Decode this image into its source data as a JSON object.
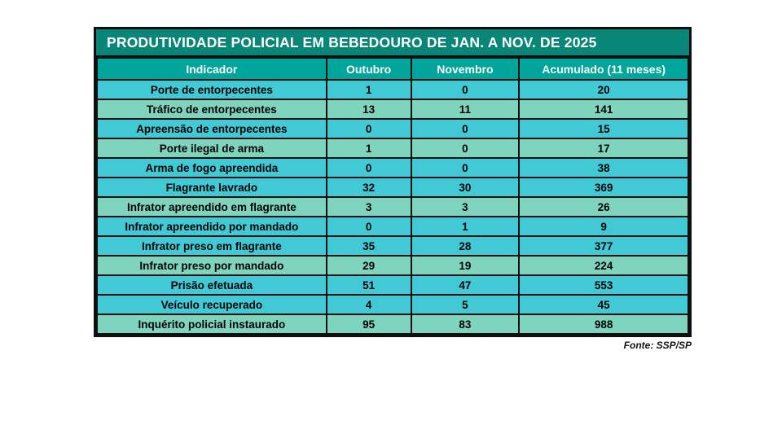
{
  "colors": {
    "page-bg": "#ffffff",
    "title-bg": "#0a8679",
    "header-bg": "#00a59b",
    "header-text": "#ffffff",
    "row-cyan": "#42c9d6",
    "row-green": "#7fd4bd",
    "row-text": "#000000",
    "border": "#0f0f0f"
  },
  "table": {
    "title": "PRODUTIVIDADE POLICIAL EM BEBEDOURO DE JAN. A NOV. DE 2025",
    "headers": {
      "indicador": "Indicador",
      "outubro": "Outubro",
      "novembro": "Novembro",
      "acumulado": "Acumulado (11 meses)"
    },
    "rows": [
      {
        "indicator": "Porte de entorpecentes",
        "outubro": "1",
        "novembro": "0",
        "acumulado": "20",
        "tone": "cyan"
      },
      {
        "indicator": "Tráfico de entorpecentes",
        "outubro": "13",
        "novembro": "11",
        "acumulado": "141",
        "tone": "green"
      },
      {
        "indicator": "Apreensão de entorpecentes",
        "outubro": "0",
        "novembro": "0",
        "acumulado": "15",
        "tone": "cyan"
      },
      {
        "indicator": "Porte ilegal de arma",
        "outubro": "1",
        "novembro": "0",
        "acumulado": "17",
        "tone": "green"
      },
      {
        "indicator": "Arma de fogo apreendida",
        "outubro": "0",
        "novembro": "0",
        "acumulado": "38",
        "tone": "cyan"
      },
      {
        "indicator": "Flagrante lavrado",
        "outubro": "32",
        "novembro": "30",
        "acumulado": "369",
        "tone": "cyan"
      },
      {
        "indicator": "Infrator apreendido em flagrante",
        "outubro": "3",
        "novembro": "3",
        "acumulado": "26",
        "tone": "green"
      },
      {
        "indicator": "Infrator apreendido por mandado",
        "outubro": "0",
        "novembro": "1",
        "acumulado": "9",
        "tone": "cyan"
      },
      {
        "indicator": "Infrator preso em flagrante",
        "outubro": "35",
        "novembro": "28",
        "acumulado": "377",
        "tone": "cyan"
      },
      {
        "indicator": "Infrator preso por mandado",
        "outubro": "29",
        "novembro": "19",
        "acumulado": "224",
        "tone": "green"
      },
      {
        "indicator": "Prisão efetuada",
        "outubro": "51",
        "novembro": "47",
        "acumulado": "553",
        "tone": "cyan"
      },
      {
        "indicator": "Veículo recuperado",
        "outubro": "4",
        "novembro": "5",
        "acumulado": "45",
        "tone": "cyan"
      },
      {
        "indicator": "Inquérito policial instaurado",
        "outubro": "95",
        "novembro": "83",
        "acumulado": "988",
        "tone": "green"
      }
    ],
    "source": "Fonte: SSP/SP"
  },
  "chart_data": {
    "type": "table",
    "title": "PRODUTIVIDADE POLICIAL EM BEBEDOURO DE JAN. A NOV. DE 2025",
    "columns": [
      "Indicador",
      "Outubro",
      "Novembro",
      "Acumulado (11 meses)"
    ],
    "rows": [
      [
        "Porte de entorpecentes",
        1,
        0,
        20
      ],
      [
        "Tráfico de entorpecentes",
        13,
        11,
        141
      ],
      [
        "Apreensão de entorpecentes",
        0,
        0,
        15
      ],
      [
        "Porte ilegal de arma",
        1,
        0,
        17
      ],
      [
        "Arma de fogo apreendida",
        0,
        0,
        38
      ],
      [
        "Flagrante lavrado",
        32,
        30,
        369
      ],
      [
        "Infrator apreendido em flagrante",
        3,
        3,
        26
      ],
      [
        "Infrator apreendido por mandado",
        0,
        1,
        9
      ],
      [
        "Infrator preso em flagrante",
        35,
        28,
        377
      ],
      [
        "Infrator preso por mandado",
        29,
        19,
        224
      ],
      [
        "Prisão efetuada",
        51,
        47,
        553
      ],
      [
        "Veículo recuperado",
        4,
        5,
        45
      ],
      [
        "Inquérito policial instaurado",
        95,
        83,
        988
      ]
    ],
    "source": "Fonte: SSP/SP"
  }
}
